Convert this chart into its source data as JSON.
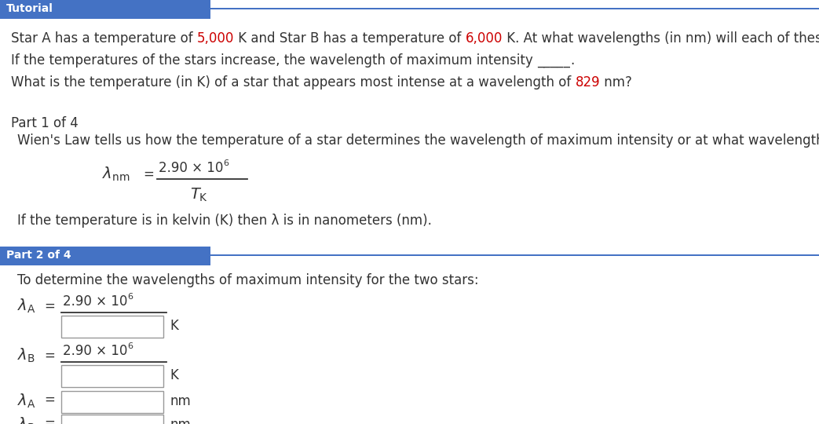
{
  "bg_color": "#ffffff",
  "header_bg": "#4472c4",
  "header_text": "Tutorial",
  "header_text_color": "#ffffff",
  "divider_color": "#4472c4",
  "part2_bg": "#4472c4",
  "part2_text": "Part 2 of 4",
  "part2_text_color": "#ffffff",
  "part1_label": "Part 1 of 4",
  "part1_text": "Wien's Law tells us how the temperature of a star determines the wavelength of maximum intensity or at what wavelength the star appears brightest.",
  "wiens_note": "If the temperature is in kelvin (K) then λ is in nanometers (nm).",
  "part2_intro": "To determine the wavelengths of maximum intensity for the two stars:",
  "red_color": "#cc0000",
  "black_color": "#333333",
  "main_font_size": 12,
  "header_font_size": 10,
  "formula_font_size": 13
}
